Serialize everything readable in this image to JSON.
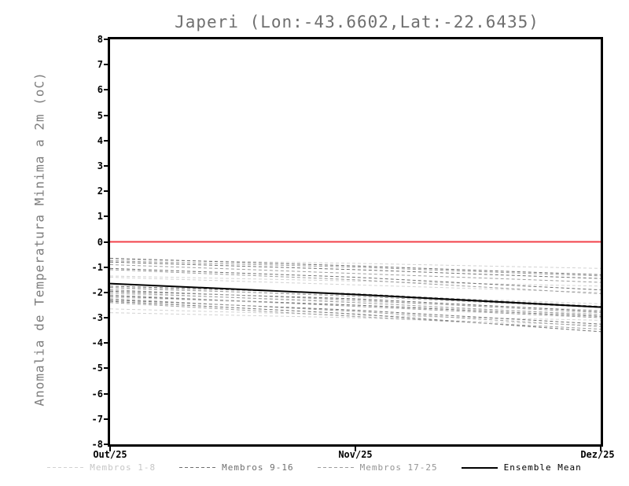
{
  "chart_data": {
    "type": "line",
    "title": "Japeri (Lon:-43.6602,Lat:-22.6435)",
    "ylabel": "Anomalia de Temperatura Minima a 2m (oC)",
    "xlabel": "",
    "x_categories": [
      "Out/25",
      "Nov/25",
      "Dez/25"
    ],
    "ylim": [
      -8,
      8
    ],
    "yticks": [
      8,
      7,
      6,
      5,
      4,
      3,
      2,
      1,
      0,
      -1,
      -2,
      -3,
      -4,
      -5,
      -6,
      -7,
      -8
    ],
    "grid": false,
    "zero_line": {
      "value": 0,
      "color": "#f2414a"
    },
    "groups": [
      {
        "name": "Membros 1-8",
        "color": "#d2d2d2",
        "style": "dashed",
        "members": [
          [
            -0.7,
            -0.85,
            -1.05
          ],
          [
            -1.35,
            -1.55,
            -1.75
          ],
          [
            -1.4,
            -1.7,
            -2.0
          ],
          [
            -1.85,
            -2.1,
            -2.45
          ],
          [
            -2.05,
            -2.35,
            -2.7
          ],
          [
            -2.2,
            -2.5,
            -2.85
          ],
          [
            -2.65,
            -2.9,
            -3.1
          ],
          [
            -2.8,
            -3.0,
            -3.3
          ]
        ]
      },
      {
        "name": "Membros 9-16",
        "color": "#6f6f6f",
        "style": "dashed",
        "members": [
          [
            -0.65,
            -0.95,
            -1.3
          ],
          [
            -0.8,
            -1.1,
            -1.45
          ],
          [
            -1.05,
            -1.4,
            -1.9
          ],
          [
            -1.75,
            -2.05,
            -2.55
          ],
          [
            -1.95,
            -2.25,
            -2.75
          ],
          [
            -2.15,
            -2.5,
            -2.95
          ],
          [
            -2.3,
            -2.7,
            -3.25
          ],
          [
            -2.35,
            -2.85,
            -3.55
          ]
        ]
      },
      {
        "name": "Membros 17-25",
        "color": "#9c9c9c",
        "style": "dashed",
        "members": [
          [
            -0.75,
            -1.0,
            -1.35
          ],
          [
            -0.9,
            -1.25,
            -1.6
          ],
          [
            -1.1,
            -1.5,
            -2.05
          ],
          [
            -1.8,
            -2.15,
            -2.6
          ],
          [
            -1.9,
            -2.3,
            -2.8
          ],
          [
            -2.0,
            -2.4,
            -2.9
          ],
          [
            -2.1,
            -2.55,
            -3.0
          ],
          [
            -2.25,
            -2.75,
            -3.35
          ],
          [
            -2.4,
            -2.95,
            -3.45
          ]
        ]
      }
    ],
    "ensemble_mean": {
      "name": "Ensemble Mean",
      "color": "#000000",
      "style": "solid",
      "values": [
        -1.65,
        -2.08,
        -2.58
      ]
    },
    "legend_position": "bottom"
  },
  "legend": {
    "items": [
      {
        "label": "Membros 1-8",
        "color": "#d2d2d2",
        "text_color": "#c6c6c6",
        "style": "dashed"
      },
      {
        "label": "Membros 9-16",
        "color": "#6f6f6f",
        "text_color": "#6f6f6f",
        "style": "dashed"
      },
      {
        "label": "Membros 17-25",
        "color": "#9c9c9c",
        "text_color": "#949494",
        "style": "dashed"
      },
      {
        "label": "Ensemble Mean",
        "color": "#000000",
        "text_color": "#000000",
        "style": "solid"
      }
    ]
  }
}
